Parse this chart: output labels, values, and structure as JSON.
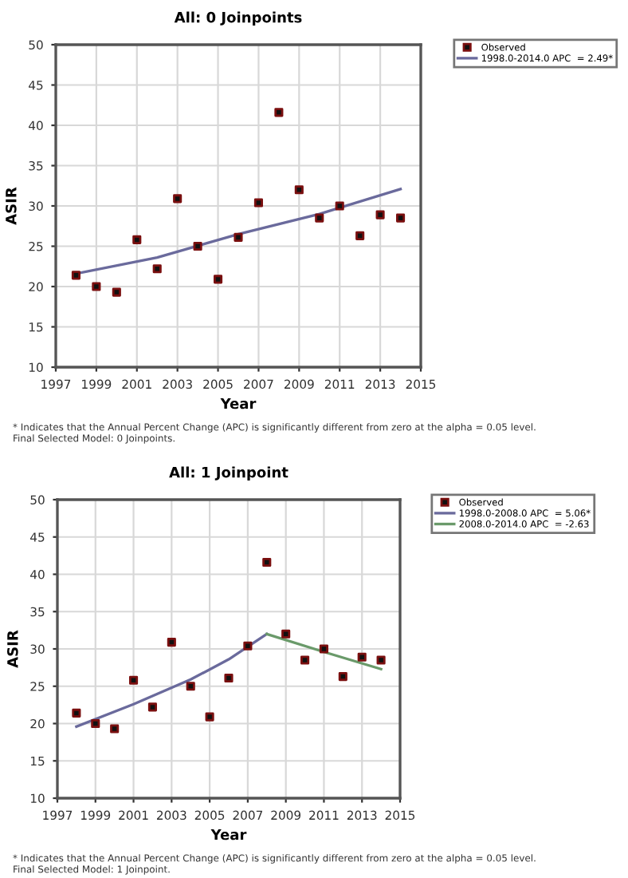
{
  "chart_data": [
    {
      "type": "scatter",
      "title": "All: 0 Joinpoints",
      "xlabel": "Year",
      "ylabel": "ASIR",
      "x": [
        1998,
        1999,
        2000,
        2001,
        2002,
        2003,
        2004,
        2005,
        2006,
        2007,
        2008,
        2009,
        2010,
        2011,
        2012,
        2013,
        2014
      ],
      "series": [
        {
          "name": "Observed",
          "type": "scatter",
          "color": "#7a0f0f",
          "marker": "square",
          "values": [
            21.4,
            20.0,
            19.3,
            25.8,
            22.2,
            30.9,
            25.0,
            20.9,
            26.1,
            30.4,
            41.6,
            32.0,
            28.5,
            30.0,
            26.3,
            28.9,
            28.5
          ]
        },
        {
          "name": "1998.0-2014.0 APC  = 2.49*",
          "type": "line",
          "color": "#6a6a9c",
          "x": [
            1998,
            2002,
            2006,
            2010,
            2014
          ],
          "values": [
            21.6,
            23.6,
            26.5,
            29.0,
            32.1
          ]
        }
      ],
      "xlim": [
        1997,
        2015
      ],
      "xticks": [
        1997,
        1999,
        2001,
        2003,
        2005,
        2007,
        2009,
        2011,
        2013,
        2015
      ],
      "ylim": [
        10,
        50
      ],
      "yticks": [
        10,
        15,
        20,
        25,
        30,
        35,
        40,
        45,
        50
      ],
      "grid": true,
      "legend": "top right",
      "annotations": [
        "* Indicates that the Annual Percent Change (APC) is significantly different from zero at the alpha = 0.05 level.",
        "Final Selected Model: 0 Joinpoints."
      ]
    },
    {
      "type": "scatter",
      "title": "All: 1 Joinpoint",
      "xlabel": "Year",
      "ylabel": "ASIR",
      "x": [
        1998,
        1999,
        2000,
        2001,
        2002,
        2003,
        2004,
        2005,
        2006,
        2007,
        2008,
        2009,
        2010,
        2011,
        2012,
        2013,
        2014
      ],
      "series": [
        {
          "name": "Observed",
          "type": "scatter",
          "color": "#7a0f0f",
          "marker": "square",
          "values": [
            21.4,
            20.0,
            19.3,
            25.8,
            22.2,
            30.9,
            25.0,
            20.9,
            26.1,
            30.4,
            41.6,
            32.0,
            28.5,
            30.0,
            26.3,
            28.9,
            28.5
          ]
        },
        {
          "name": "1998.0-2008.0 APC  = 5.06*",
          "type": "line",
          "color": "#6a6a9c",
          "x": [
            1998,
            2001,
            2004,
            2006,
            2008
          ],
          "values": [
            19.6,
            22.6,
            25.9,
            28.6,
            32.0
          ]
        },
        {
          "name": "2008.0-2014.0 APC  = -2.63",
          "type": "line",
          "color": "#6a9a6a",
          "x": [
            2008,
            2011,
            2014
          ],
          "values": [
            32.0,
            29.6,
            27.3
          ]
        }
      ],
      "xlim": [
        1997,
        2015
      ],
      "xticks": [
        1997,
        1999,
        2001,
        2003,
        2005,
        2007,
        2009,
        2011,
        2013,
        2015
      ],
      "ylim": [
        10,
        50
      ],
      "yticks": [
        10,
        15,
        20,
        25,
        30,
        35,
        40,
        45,
        50
      ],
      "grid": true,
      "legend": "top right",
      "annotations": [
        "* Indicates that the Annual Percent Change (APC) is significantly different from zero at the alpha = 0.05 level.",
        "Final Selected Model: 1 Joinpoint."
      ]
    }
  ]
}
